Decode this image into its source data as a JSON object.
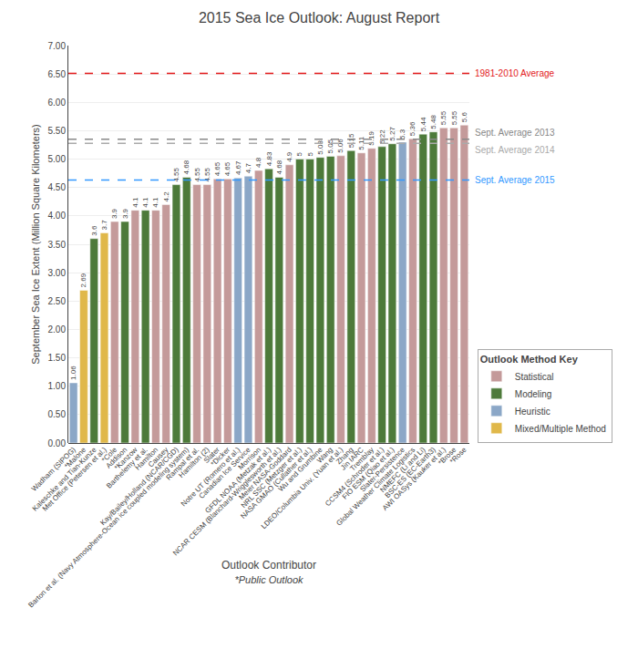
{
  "chart_data": {
    "type": "bar",
    "title": "2015 Sea Ice Outlook: August Report",
    "xlabel": "Outlook Contributor",
    "xlabel2": "*Public Outlook",
    "ylabel": "September Sea Ice Extent (Million Square Kilometers)",
    "legend_title": "Outlook Method Key",
    "categories": [
      "Wadham (SIPOG)",
      "*Malone",
      "Kaleschke and Tian-Kunze",
      "Met Office (Petersen et al.)",
      "*Cole",
      "Addison",
      "*Kanzow",
      "Barthelemy et al.",
      "Hamilton",
      "Causey",
      "Kay/Bailey/Holland (NCAR/CGD)",
      "Barton et al. (Navy Atmosphere-Ocean ice coupled modeling system)",
      "Rampal et al.",
      "Hamilton (2)",
      "Slater",
      "*Dicker",
      "Notre UT (Romero et al.)",
      "Canadian Ice Service",
      "Morrison",
      "GFDL NOAA (Metzak et al.)",
      "NCAR CESM (Blanchard-Wrigglesworth et al.)",
      "Meier NASA-Goddard",
      "NRL SSC (Metzger et al.)",
      "NASA GMAO (Cullather et al.)",
      "Wu and Grumbine",
      "Wang",
      "LDEO/Columbia Univ. (Yuan et al.)",
      "Zhang",
      "Jin IARC",
      "Tremblay",
      "CCSM4 (Schroder et al.)",
      "FIO ESM (Qiao et al.)",
      "Slater-Persistence",
      "Global Weather Climate Logistics",
      "NMEFC (Li and Li)",
      "BSC-ES (EC-Earth3)",
      "AWI OASys (Kauker et al.)",
      "*Brose",
      "*Rose"
    ],
    "series": [
      {
        "name": "Statistical",
        "color": "#c49a9a",
        "values": [
          null,
          null,
          null,
          null,
          3.9,
          null,
          4.1,
          null,
          4.1,
          4.2,
          null,
          null,
          4.55,
          4.55,
          4.65,
          4.65,
          null,
          null,
          4.8,
          null,
          null,
          4.9,
          null,
          null,
          null,
          null,
          5.06,
          null,
          5.11,
          5.19,
          null,
          null,
          null,
          5.36,
          null,
          null,
          5.55,
          5.55,
          5.6
        ]
      },
      {
        "name": "Modeling",
        "color": "#4d7a3a",
        "values": [
          null,
          null,
          3.6,
          null,
          null,
          3.9,
          null,
          4.1,
          null,
          null,
          4.55,
          4.68,
          null,
          null,
          null,
          null,
          null,
          null,
          null,
          4.83,
          4.68,
          null,
          5.0,
          5.0,
          5.03,
          5.05,
          null,
          5.15,
          null,
          null,
          5.22,
          5.27,
          null,
          null,
          5.44,
          5.48,
          null,
          null,
          null
        ]
      },
      {
        "name": "Heuristic",
        "color": "#8ba7c7",
        "values": [
          1.06,
          null,
          null,
          null,
          null,
          null,
          null,
          null,
          null,
          null,
          null,
          null,
          null,
          null,
          null,
          null,
          4.67,
          4.7,
          null,
          null,
          null,
          null,
          null,
          null,
          null,
          null,
          null,
          null,
          null,
          null,
          null,
          null,
          5.3,
          null,
          null,
          null,
          null,
          null,
          null
        ]
      },
      {
        "name": "Mixed/Multiple Method",
        "color": "#e0b84a",
        "values": [
          null,
          2.69,
          null,
          3.7,
          null,
          null,
          null,
          null,
          null,
          null,
          null,
          null,
          null,
          null,
          null,
          null,
          null,
          null,
          null,
          null,
          null,
          null,
          null,
          null,
          null,
          null,
          null,
          null,
          null,
          null,
          null,
          null,
          null,
          null,
          null,
          null,
          null,
          null,
          null
        ]
      }
    ],
    "ref_lines": [
      {
        "y": 6.51,
        "label": "1981-2010 Average",
        "color": "#e31a1c"
      },
      {
        "y": 5.35,
        "label": "Sept. Average 2013",
        "color": "#888888"
      },
      {
        "y": 5.28,
        "label": "Sept. Average 2014",
        "color": "#aaaaaa"
      },
      {
        "y": 4.63,
        "label": "Sept. Average 2015",
        "color": "#3399ff"
      }
    ],
    "ylim": [
      0.0,
      7.0
    ],
    "yticks": [
      {
        "value": 0.0,
        "label": "0.00"
      },
      {
        "value": 0.5,
        "label": "0.50"
      },
      {
        "value": 1.0,
        "label": "1.00"
      },
      {
        "value": 1.5,
        "label": "1.50"
      },
      {
        "value": 2.0,
        "label": "2.00"
      },
      {
        "value": 2.5,
        "label": "2.50"
      },
      {
        "value": 3.0,
        "label": "3.00"
      },
      {
        "value": 3.5,
        "label": "3.50"
      },
      {
        "value": 4.0,
        "label": "4.00"
      },
      {
        "value": 4.5,
        "label": "4.50"
      },
      {
        "value": 5.0,
        "label": "5.00"
      },
      {
        "value": 5.5,
        "label": "5.50"
      },
      {
        "value": 6.0,
        "label": "6.00"
      },
      {
        "value": 6.5,
        "label": "6.50"
      },
      {
        "value": 7.0,
        "label": "7.00"
      }
    ],
    "grid": true,
    "legend": "lower right",
    "data_labels": true
  }
}
